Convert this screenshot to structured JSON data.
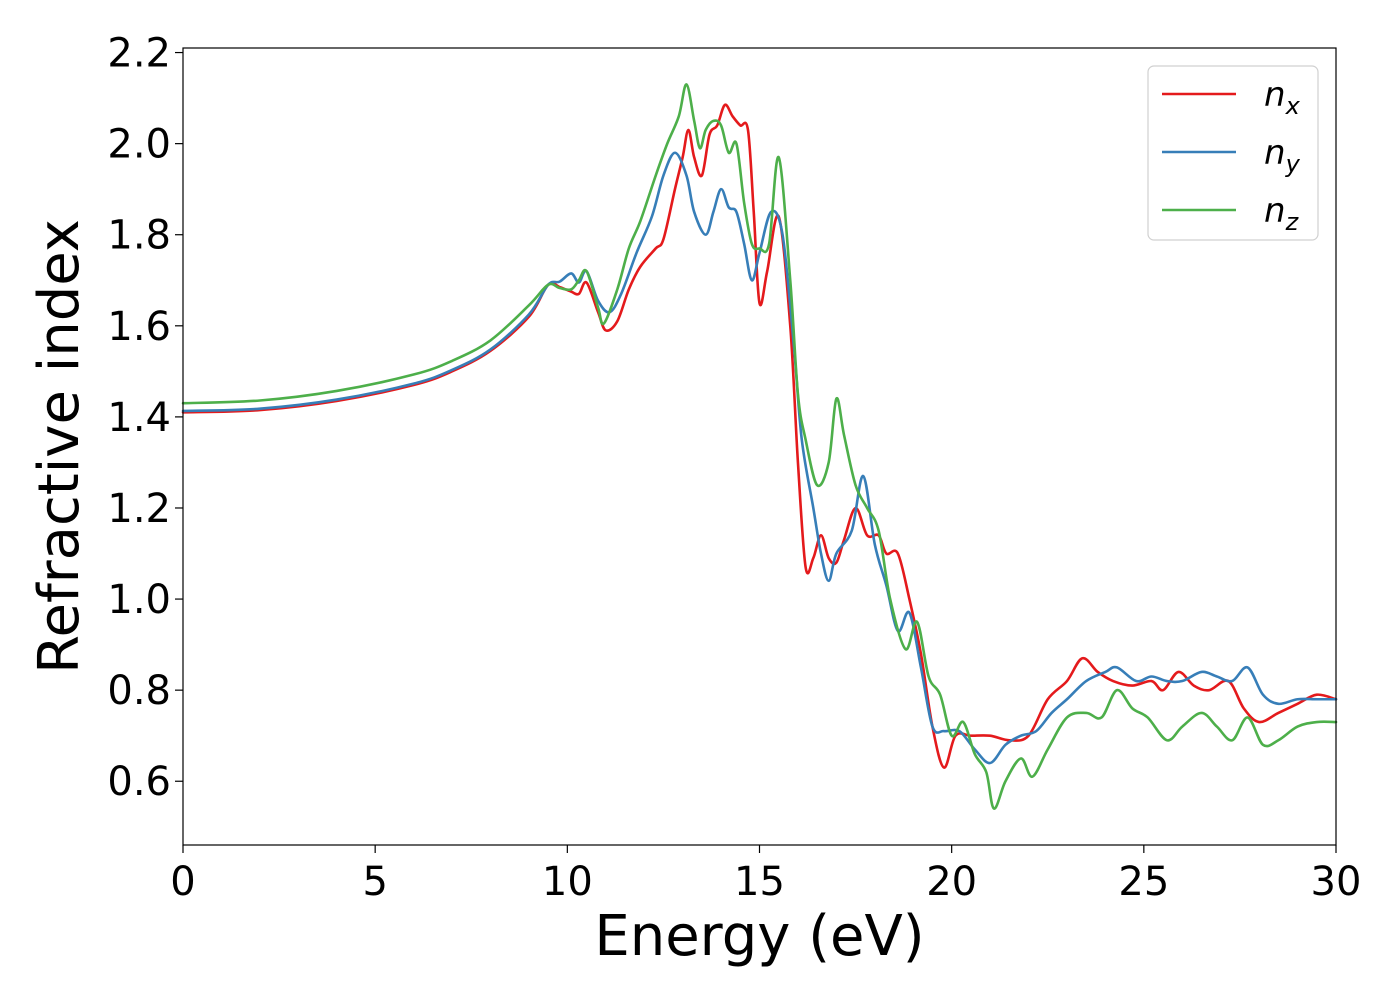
{
  "chart_data": {
    "type": "line",
    "xlabel": "Energy (eV)",
    "ylabel": "Refractive index",
    "xlim": [
      0,
      30
    ],
    "ylim": [
      0.46,
      2.21
    ],
    "xticks": [
      "0",
      "5",
      "10",
      "15",
      "20",
      "25",
      "30"
    ],
    "yticks": [
      "0.6",
      "0.8",
      "1.0",
      "1.2",
      "1.4",
      "1.6",
      "1.8",
      "2.0",
      "2.2"
    ],
    "grid": false,
    "legend_position": "top-right",
    "series": [
      {
        "name": "n",
        "subscript": "x",
        "color": "#e41a1c",
        "points": [
          [
            0,
            1.41
          ],
          [
            2,
            1.415
          ],
          [
            4,
            1.435
          ],
          [
            6,
            1.47
          ],
          [
            7,
            1.5
          ],
          [
            8,
            1.545
          ],
          [
            9,
            1.62
          ],
          [
            9.5,
            1.69
          ],
          [
            9.8,
            1.685
          ],
          [
            10.1,
            1.675
          ],
          [
            10.3,
            1.67
          ],
          [
            10.5,
            1.695
          ],
          [
            10.8,
            1.63
          ],
          [
            11.0,
            1.59
          ],
          [
            11.3,
            1.61
          ],
          [
            11.6,
            1.68
          ],
          [
            11.9,
            1.73
          ],
          [
            12.3,
            1.77
          ],
          [
            12.5,
            1.79
          ],
          [
            12.8,
            1.9
          ],
          [
            13.0,
            1.97
          ],
          [
            13.15,
            2.03
          ],
          [
            13.3,
            1.97
          ],
          [
            13.5,
            1.93
          ],
          [
            13.7,
            2.02
          ],
          [
            13.9,
            2.04
          ],
          [
            14.1,
            2.085
          ],
          [
            14.3,
            2.06
          ],
          [
            14.5,
            2.04
          ],
          [
            14.7,
            2.03
          ],
          [
            14.85,
            1.85
          ],
          [
            15.0,
            1.65
          ],
          [
            15.2,
            1.72
          ],
          [
            15.5,
            1.84
          ],
          [
            15.8,
            1.6
          ],
          [
            16.0,
            1.3
          ],
          [
            16.2,
            1.07
          ],
          [
            16.4,
            1.09
          ],
          [
            16.6,
            1.14
          ],
          [
            16.8,
            1.09
          ],
          [
            17.0,
            1.08
          ],
          [
            17.2,
            1.13
          ],
          [
            17.5,
            1.2
          ],
          [
            17.8,
            1.14
          ],
          [
            18.1,
            1.14
          ],
          [
            18.3,
            1.1
          ],
          [
            18.6,
            1.1
          ],
          [
            18.9,
            1.0
          ],
          [
            19.2,
            0.88
          ],
          [
            19.5,
            0.72
          ],
          [
            19.8,
            0.63
          ],
          [
            20.1,
            0.7
          ],
          [
            20.5,
            0.7
          ],
          [
            21.0,
            0.7
          ],
          [
            21.5,
            0.69
          ],
          [
            22.0,
            0.7
          ],
          [
            22.5,
            0.78
          ],
          [
            23.0,
            0.82
          ],
          [
            23.4,
            0.87
          ],
          [
            23.8,
            0.84
          ],
          [
            24.2,
            0.82
          ],
          [
            24.7,
            0.81
          ],
          [
            25.2,
            0.82
          ],
          [
            25.5,
            0.8
          ],
          [
            25.9,
            0.84
          ],
          [
            26.3,
            0.81
          ],
          [
            26.7,
            0.8
          ],
          [
            27.2,
            0.82
          ],
          [
            27.6,
            0.76
          ],
          [
            28.0,
            0.73
          ],
          [
            28.5,
            0.75
          ],
          [
            29.0,
            0.77
          ],
          [
            29.5,
            0.79
          ],
          [
            30.0,
            0.78
          ]
        ]
      },
      {
        "name": "n",
        "subscript": "y",
        "color": "#377eb8",
        "points": [
          [
            0,
            1.413
          ],
          [
            2,
            1.418
          ],
          [
            4,
            1.438
          ],
          [
            6,
            1.473
          ],
          [
            7,
            1.503
          ],
          [
            8,
            1.548
          ],
          [
            9,
            1.625
          ],
          [
            9.5,
            1.69
          ],
          [
            9.8,
            1.697
          ],
          [
            10.1,
            1.715
          ],
          [
            10.3,
            1.695
          ],
          [
            10.5,
            1.72
          ],
          [
            10.8,
            1.655
          ],
          [
            11.1,
            1.63
          ],
          [
            11.4,
            1.67
          ],
          [
            11.8,
            1.76
          ],
          [
            12.2,
            1.84
          ],
          [
            12.5,
            1.93
          ],
          [
            12.8,
            1.98
          ],
          [
            13.1,
            1.93
          ],
          [
            13.3,
            1.85
          ],
          [
            13.6,
            1.8
          ],
          [
            13.8,
            1.85
          ],
          [
            14.0,
            1.9
          ],
          [
            14.2,
            1.86
          ],
          [
            14.4,
            1.85
          ],
          [
            14.6,
            1.78
          ],
          [
            14.8,
            1.7
          ],
          [
            15.0,
            1.76
          ],
          [
            15.3,
            1.85
          ],
          [
            15.6,
            1.8
          ],
          [
            15.9,
            1.55
          ],
          [
            16.1,
            1.35
          ],
          [
            16.4,
            1.2
          ],
          [
            16.6,
            1.1
          ],
          [
            16.8,
            1.04
          ],
          [
            17.0,
            1.1
          ],
          [
            17.4,
            1.15
          ],
          [
            17.7,
            1.27
          ],
          [
            18.0,
            1.12
          ],
          [
            18.3,
            1.03
          ],
          [
            18.6,
            0.93
          ],
          [
            18.9,
            0.97
          ],
          [
            19.2,
            0.85
          ],
          [
            19.5,
            0.72
          ],
          [
            19.8,
            0.71
          ],
          [
            20.2,
            0.71
          ],
          [
            20.6,
            0.67
          ],
          [
            21.0,
            0.64
          ],
          [
            21.4,
            0.68
          ],
          [
            21.8,
            0.7
          ],
          [
            22.2,
            0.71
          ],
          [
            22.6,
            0.75
          ],
          [
            23.0,
            0.78
          ],
          [
            23.5,
            0.82
          ],
          [
            24.0,
            0.84
          ],
          [
            24.3,
            0.85
          ],
          [
            24.8,
            0.82
          ],
          [
            25.2,
            0.83
          ],
          [
            25.6,
            0.82
          ],
          [
            26.0,
            0.82
          ],
          [
            26.5,
            0.84
          ],
          [
            26.9,
            0.83
          ],
          [
            27.3,
            0.82
          ],
          [
            27.7,
            0.85
          ],
          [
            28.1,
            0.79
          ],
          [
            28.5,
            0.77
          ],
          [
            29.0,
            0.78
          ],
          [
            29.5,
            0.78
          ],
          [
            30.0,
            0.78
          ]
        ]
      },
      {
        "name": "n",
        "subscript": "z",
        "color": "#4daf4a",
        "points": [
          [
            0,
            1.43
          ],
          [
            2,
            1.436
          ],
          [
            4,
            1.457
          ],
          [
            6,
            1.493
          ],
          [
            7,
            1.523
          ],
          [
            8,
            1.568
          ],
          [
            9,
            1.645
          ],
          [
            9.5,
            1.69
          ],
          [
            9.8,
            1.683
          ],
          [
            10.1,
            1.68
          ],
          [
            10.3,
            1.7
          ],
          [
            10.5,
            1.72
          ],
          [
            10.8,
            1.64
          ],
          [
            10.95,
            1.605
          ],
          [
            11.3,
            1.68
          ],
          [
            11.6,
            1.77
          ],
          [
            11.9,
            1.83
          ],
          [
            12.3,
            1.93
          ],
          [
            12.6,
            2.0
          ],
          [
            12.9,
            2.06
          ],
          [
            13.1,
            2.13
          ],
          [
            13.3,
            2.05
          ],
          [
            13.45,
            1.99
          ],
          [
            13.6,
            2.03
          ],
          [
            13.8,
            2.05
          ],
          [
            14.0,
            2.04
          ],
          [
            14.2,
            1.98
          ],
          [
            14.4,
            2.0
          ],
          [
            14.6,
            1.87
          ],
          [
            14.8,
            1.78
          ],
          [
            15.0,
            1.77
          ],
          [
            15.25,
            1.78
          ],
          [
            15.5,
            1.97
          ],
          [
            15.8,
            1.7
          ],
          [
            16.0,
            1.45
          ],
          [
            16.2,
            1.35
          ],
          [
            16.5,
            1.25
          ],
          [
            16.8,
            1.3
          ],
          [
            17.0,
            1.44
          ],
          [
            17.2,
            1.36
          ],
          [
            17.5,
            1.25
          ],
          [
            17.8,
            1.2
          ],
          [
            18.1,
            1.15
          ],
          [
            18.4,
            1.0
          ],
          [
            18.8,
            0.89
          ],
          [
            19.1,
            0.95
          ],
          [
            19.4,
            0.83
          ],
          [
            19.7,
            0.79
          ],
          [
            20.0,
            0.7
          ],
          [
            20.3,
            0.73
          ],
          [
            20.6,
            0.66
          ],
          [
            20.9,
            0.62
          ],
          [
            21.1,
            0.54
          ],
          [
            21.4,
            0.6
          ],
          [
            21.8,
            0.65
          ],
          [
            22.1,
            0.61
          ],
          [
            22.5,
            0.67
          ],
          [
            23.0,
            0.74
          ],
          [
            23.5,
            0.75
          ],
          [
            23.9,
            0.74
          ],
          [
            24.3,
            0.8
          ],
          [
            24.7,
            0.76
          ],
          [
            25.1,
            0.74
          ],
          [
            25.6,
            0.69
          ],
          [
            26.0,
            0.72
          ],
          [
            26.5,
            0.75
          ],
          [
            26.9,
            0.72
          ],
          [
            27.3,
            0.69
          ],
          [
            27.7,
            0.74
          ],
          [
            28.1,
            0.68
          ],
          [
            28.5,
            0.69
          ],
          [
            29.0,
            0.72
          ],
          [
            29.5,
            0.73
          ],
          [
            30.0,
            0.73
          ]
        ]
      }
    ]
  }
}
